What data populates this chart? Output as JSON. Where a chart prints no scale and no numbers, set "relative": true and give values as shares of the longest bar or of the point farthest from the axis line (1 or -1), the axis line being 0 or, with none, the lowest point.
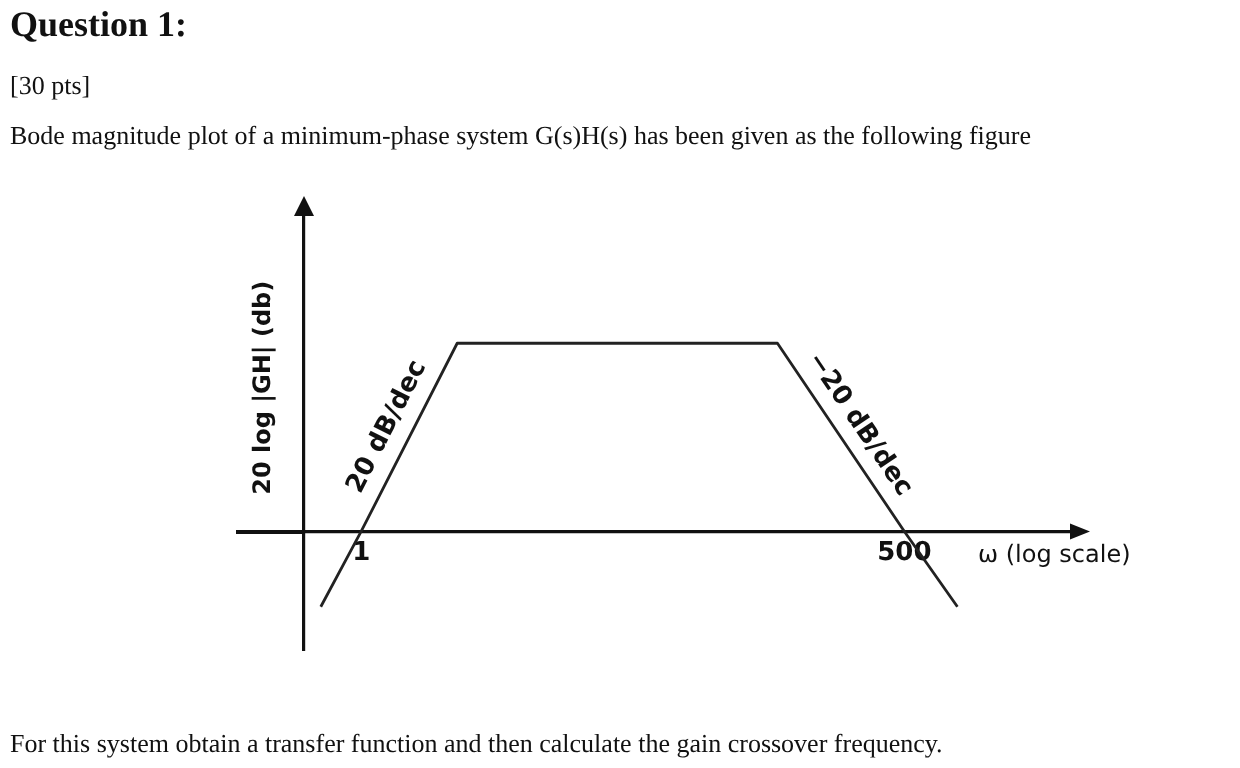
{
  "chart_data": {
    "type": "line",
    "title": "Question 1:",
    "subtitle": "[30 pts]",
    "xlabel": "ω (log scale)",
    "ylabel": "20 log |GH| (db)",
    "x": [
      0.63,
      1,
      3,
      117,
      500,
      917
    ],
    "values": [
      -0.4,
      0,
      1,
      1,
      0,
      -0.4
    ],
    "color": "#222222",
    "relative": true,
    "log": "x",
    "xlim": [
      0.52,
      3480
    ],
    "xticks": [
      1,
      500
    ],
    "grid": false,
    "legend": false,
    "marker": "none",
    "line_style": "solid",
    "annotations": [
      "Bode magnitude plot of a minimum-phase system G(s)H(s) has been given as the following figure",
      {
        "text": "20 dB/dec",
        "x": 1.7,
        "y": 0.5
      },
      {
        "text": "−20 dB/dec",
        "x": 240,
        "y": 0.5
      },
      "For this system obtain a transfer function and then calculate the gain crossover frequency."
    ]
  }
}
